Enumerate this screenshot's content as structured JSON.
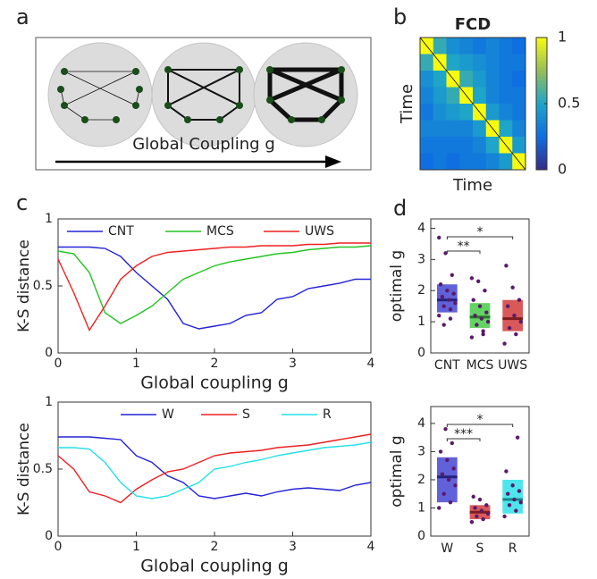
{
  "panel_labels": [
    "a",
    "b",
    "c",
    "d"
  ],
  "diagram": {
    "label": "Global Coupling  g"
  },
  "chart_data": [
    {
      "type": "heatmap",
      "title": "FCD",
      "xlabel": "Time",
      "ylabel": "Time",
      "z": [
        [
          1,
          0.55,
          0.4,
          0.35,
          0.3,
          0.35,
          0.3,
          0.25
        ],
        [
          0.55,
          1,
          0.5,
          0.45,
          0.4,
          0.35,
          0.3,
          0.3
        ],
        [
          0.4,
          0.5,
          1,
          0.55,
          0.45,
          0.35,
          0.3,
          0.25
        ],
        [
          0.35,
          0.45,
          0.55,
          1,
          0.5,
          0.35,
          0.3,
          0.3
        ],
        [
          0.3,
          0.4,
          0.45,
          0.5,
          1,
          0.45,
          0.35,
          0.3
        ],
        [
          0.35,
          0.35,
          0.35,
          0.35,
          0.45,
          1,
          0.5,
          0.35
        ],
        [
          0.3,
          0.3,
          0.3,
          0.3,
          0.35,
          0.5,
          1,
          0.45
        ],
        [
          0.25,
          0.3,
          0.25,
          0.3,
          0.3,
          0.35,
          0.45,
          1
        ]
      ],
      "zlim": [
        0,
        1
      ],
      "zticks": [
        0,
        0.5,
        1
      ]
    },
    {
      "type": "line",
      "xlabel": "Global coupling g",
      "ylabel": "K-S distance",
      "legend": "top",
      "x": [
        0,
        0.2,
        0.4,
        0.6,
        0.8,
        1,
        1.2,
        1.4,
        1.6,
        1.8,
        2,
        2.2,
        2.4,
        2.6,
        2.8,
        3,
        3.2,
        3.4,
        3.6,
        3.8,
        4
      ],
      "xlim": [
        0,
        4
      ],
      "xticks": [
        0,
        1,
        2,
        3,
        4
      ],
      "ylim": [
        0,
        1
      ],
      "yticks": [
        0,
        0.5,
        1
      ],
      "series": [
        {
          "name": "CNT",
          "color": "#2323d6",
          "values": [
            0.79,
            0.79,
            0.79,
            0.78,
            0.72,
            0.6,
            0.5,
            0.4,
            0.22,
            0.18,
            0.2,
            0.22,
            0.28,
            0.3,
            0.4,
            0.42,
            0.48,
            0.5,
            0.52,
            0.55,
            0.55
          ]
        },
        {
          "name": "MCS",
          "color": "#22c422",
          "values": [
            0.76,
            0.74,
            0.6,
            0.3,
            0.22,
            0.28,
            0.35,
            0.45,
            0.55,
            0.6,
            0.65,
            0.68,
            0.7,
            0.72,
            0.74,
            0.75,
            0.77,
            0.78,
            0.79,
            0.79,
            0.8
          ]
        },
        {
          "name": "UWS",
          "color": "#ee2020",
          "values": [
            0.7,
            0.45,
            0.17,
            0.35,
            0.55,
            0.65,
            0.72,
            0.75,
            0.76,
            0.77,
            0.78,
            0.79,
            0.79,
            0.8,
            0.8,
            0.8,
            0.81,
            0.81,
            0.82,
            0.82,
            0.82
          ]
        }
      ]
    },
    {
      "type": "line",
      "xlabel": "Global coupling g",
      "ylabel": "K-S distance",
      "legend": "top-right",
      "x": [
        0,
        0.2,
        0.4,
        0.6,
        0.8,
        1,
        1.2,
        1.4,
        1.6,
        1.8,
        2,
        2.2,
        2.4,
        2.6,
        2.8,
        3,
        3.2,
        3.4,
        3.6,
        3.8,
        4
      ],
      "xlim": [
        0,
        4
      ],
      "xticks": [
        0,
        1,
        2,
        3,
        4
      ],
      "ylim": [
        0,
        1
      ],
      "yticks": [
        0,
        0.5,
        1
      ],
      "series": [
        {
          "name": "W",
          "color": "#2323d6",
          "values": [
            0.74,
            0.74,
            0.74,
            0.73,
            0.72,
            0.6,
            0.55,
            0.45,
            0.4,
            0.3,
            0.28,
            0.3,
            0.32,
            0.3,
            0.33,
            0.35,
            0.36,
            0.35,
            0.34,
            0.38,
            0.4
          ]
        },
        {
          "name": "S",
          "color": "#ee2020",
          "values": [
            0.6,
            0.5,
            0.33,
            0.3,
            0.25,
            0.35,
            0.42,
            0.48,
            0.5,
            0.55,
            0.6,
            0.62,
            0.63,
            0.64,
            0.66,
            0.67,
            0.68,
            0.7,
            0.72,
            0.74,
            0.76
          ]
        },
        {
          "name": "R",
          "color": "#22e0e8",
          "values": [
            0.66,
            0.66,
            0.65,
            0.55,
            0.4,
            0.3,
            0.28,
            0.3,
            0.35,
            0.4,
            0.5,
            0.52,
            0.55,
            0.57,
            0.6,
            0.62,
            0.64,
            0.66,
            0.67,
            0.68,
            0.7
          ]
        }
      ]
    },
    {
      "type": "box",
      "ylabel": "optimal g",
      "categories": [
        "CNT",
        "MCS",
        "UWS"
      ],
      "colors": [
        "#3a3ad0",
        "#3cc83c",
        "#d03030"
      ],
      "ylim": [
        0,
        4.3
      ],
      "yticks": [
        0,
        1,
        2,
        3,
        4
      ],
      "values": [
        1.7,
        1.15,
        1.1
      ],
      "lower": [
        1.3,
        0.8,
        0.7
      ],
      "upper": [
        2.2,
        1.6,
        1.7
      ],
      "points": [
        [
          1.2,
          1.4,
          1.5,
          1.6,
          1.7,
          1.8,
          1.9,
          2.0,
          2.2,
          2.5,
          3.2,
          3.7,
          1.1,
          0.9
        ],
        [
          0.5,
          0.7,
          0.9,
          1.0,
          1.1,
          1.2,
          1.3,
          1.5,
          1.7,
          2.0,
          2.3,
          2.4,
          0.6
        ],
        [
          0.3,
          0.6,
          0.8,
          1.0,
          1.2,
          1.5,
          1.7,
          2.1,
          2.8
        ]
      ],
      "annotations": [
        {
          "text": "**",
          "pair": [
            0,
            1
          ]
        },
        {
          "text": "*",
          "pair": [
            0,
            2
          ]
        }
      ]
    },
    {
      "type": "box",
      "ylabel": "optimal g",
      "categories": [
        "W",
        "S",
        "R"
      ],
      "colors": [
        "#3a3ad0",
        "#d03030",
        "#22e0e8"
      ],
      "ylim": [
        0,
        4.6
      ],
      "yticks": [
        0,
        1,
        2,
        3,
        4
      ],
      "values": [
        2.1,
        0.85,
        1.3
      ],
      "lower": [
        1.2,
        0.6,
        0.8
      ],
      "upper": [
        2.8,
        1.1,
        2.0
      ],
      "points": [
        [
          1.0,
          1.2,
          1.5,
          1.8,
          2.0,
          2.2,
          2.4,
          2.7,
          3.0,
          3.3,
          3.8
        ],
        [
          0.5,
          0.6,
          0.7,
          0.8,
          0.9,
          1.0,
          1.1,
          1.3,
          1.4
        ],
        [
          0.7,
          0.9,
          1.1,
          1.2,
          1.3,
          1.5,
          1.6,
          1.8,
          2.3,
          3.5
        ]
      ],
      "annotations": [
        {
          "text": "***",
          "pair": [
            0,
            1
          ]
        },
        {
          "text": "*",
          "pair": [
            0,
            2
          ]
        }
      ]
    }
  ]
}
